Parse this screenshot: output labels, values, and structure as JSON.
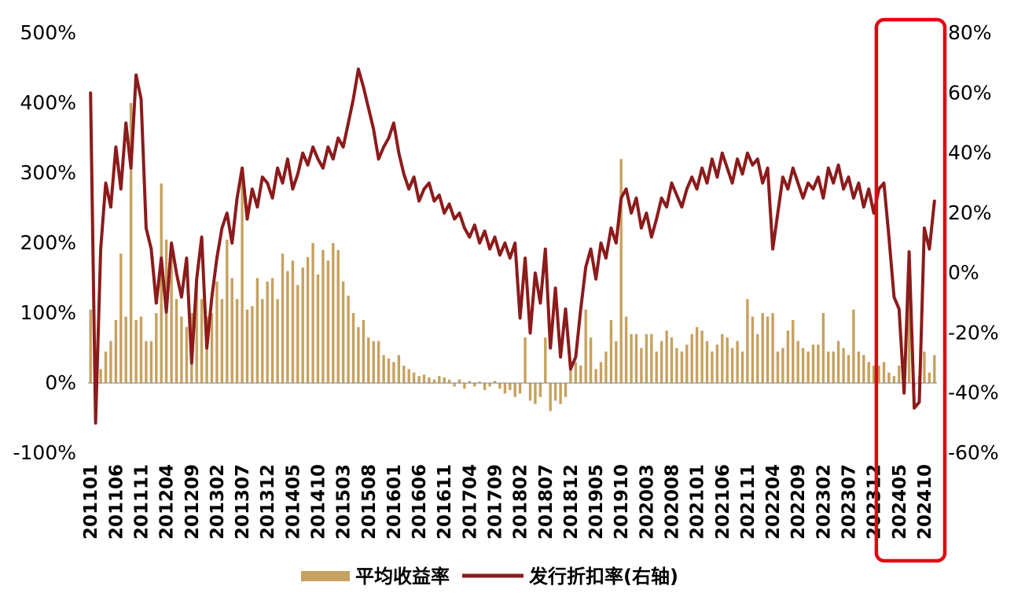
{
  "chart_data": {
    "type": "bar",
    "subtype": "combo-bar-line-dual-axis",
    "title": "",
    "legend": [
      "平均收益率",
      "发行折扣率(右轴)"
    ],
    "bar_series_name": "平均收益率",
    "line_series_name": "发行折扣率(右轴)",
    "x_start": "2011-01",
    "x_tick_interval_months": 5,
    "x_tick_labels": [
      "201101",
      "201106",
      "201111",
      "201204",
      "201209",
      "201302",
      "201307",
      "201312",
      "201405",
      "201410",
      "201503",
      "201508",
      "201601",
      "201606",
      "201611",
      "201704",
      "201709",
      "201802",
      "201807",
      "201812",
      "201905",
      "201910",
      "202003",
      "202008",
      "202101",
      "202106",
      "202111",
      "202204",
      "202209",
      "202302",
      "202307",
      "202312",
      "202405",
      "202410"
    ],
    "left_axis": {
      "min": -100,
      "max": 500,
      "tick_labels": [
        "500%",
        "400%",
        "300%",
        "200%",
        "100%",
        "0%",
        "-100%"
      ],
      "series": "平均收益率"
    },
    "right_axis": {
      "min": -60,
      "max": 80,
      "tick_labels": [
        "80%",
        "60%",
        "40%",
        "20%",
        "0%",
        "-20%",
        "-40%",
        "-60%"
      ],
      "series": "发行折扣率(右轴)"
    },
    "bar_values_pct": [
      105,
      -25,
      20,
      45,
      60,
      90,
      185,
      95,
      400,
      90,
      95,
      60,
      60,
      100,
      285,
      205,
      200,
      120,
      95,
      80,
      100,
      150,
      120,
      95,
      100,
      145,
      120,
      205,
      150,
      120,
      290,
      105,
      110,
      150,
      120,
      145,
      150,
      120,
      185,
      160,
      175,
      140,
      165,
      180,
      200,
      155,
      190,
      175,
      200,
      190,
      145,
      125,
      100,
      80,
      90,
      65,
      60,
      60,
      40,
      35,
      30,
      40,
      25,
      20,
      15,
      10,
      12,
      8,
      5,
      10,
      8,
      5,
      -5,
      5,
      -8,
      3,
      -5,
      2,
      -10,
      -5,
      3,
      -8,
      -15,
      -10,
      -20,
      -15,
      65,
      -25,
      -30,
      -20,
      65,
      -40,
      -25,
      -30,
      -20,
      30,
      30,
      25,
      105,
      65,
      20,
      30,
      45,
      90,
      60,
      320,
      95,
      70,
      70,
      50,
      70,
      70,
      45,
      60,
      75,
      65,
      50,
      45,
      55,
      70,
      80,
      75,
      60,
      45,
      55,
      70,
      65,
      50,
      60,
      45,
      120,
      95,
      70,
      100,
      95,
      100,
      45,
      50,
      75,
      90,
      60,
      50,
      45,
      55,
      55,
      100,
      45,
      45,
      60,
      50,
      40,
      105,
      45,
      40,
      30,
      25,
      25,
      30,
      15,
      10,
      25,
      5,
      190,
      -5,
      10,
      45,
      15,
      40
    ],
    "line_values_pct": [
      60,
      -50,
      8,
      30,
      22,
      42,
      28,
      50,
      35,
      66,
      58,
      15,
      8,
      -10,
      5,
      -13,
      10,
      0,
      -8,
      5,
      -30,
      -2,
      12,
      -25,
      -8,
      5,
      15,
      20,
      10,
      25,
      35,
      18,
      28,
      22,
      32,
      30,
      25,
      35,
      30,
      38,
      28,
      33,
      40,
      36,
      42,
      38,
      35,
      42,
      38,
      45,
      42,
      50,
      58,
      68,
      62,
      55,
      48,
      38,
      42,
      45,
      50,
      40,
      33,
      28,
      32,
      24,
      28,
      30,
      24,
      26,
      20,
      23,
      18,
      20,
      15,
      12,
      16,
      10,
      14,
      8,
      12,
      6,
      10,
      5,
      10,
      -15,
      5,
      -20,
      0,
      -10,
      8,
      -25,
      -5,
      -28,
      -12,
      -32,
      -28,
      -12,
      2,
      8,
      -2,
      10,
      5,
      15,
      10,
      25,
      28,
      20,
      25,
      15,
      20,
      12,
      18,
      25,
      22,
      30,
      26,
      22,
      28,
      32,
      28,
      35,
      30,
      38,
      32,
      40,
      35,
      30,
      38,
      33,
      40,
      36,
      38,
      30,
      35,
      8,
      20,
      32,
      28,
      35,
      30,
      25,
      30,
      28,
      32,
      25,
      35,
      30,
      36,
      28,
      32,
      25,
      30,
      22,
      28,
      20,
      28,
      30,
      12,
      -8,
      -12,
      -40,
      7,
      -45,
      -43,
      15,
      8,
      24
    ],
    "highlight": {
      "start_month_index": 156,
      "end_month_index": 168,
      "covers_tick_labels": [
        "202405",
        "202410"
      ]
    },
    "colors": {
      "bar": "#C7A15F",
      "line": "#8C1B1C",
      "highlight_box": "#E60012",
      "axis_line": "#808080",
      "text": "#000000"
    },
    "layout_hints": {
      "grid": false,
      "legend_position": "bottom-center",
      "x_label_rotation_deg": 90
    }
  }
}
